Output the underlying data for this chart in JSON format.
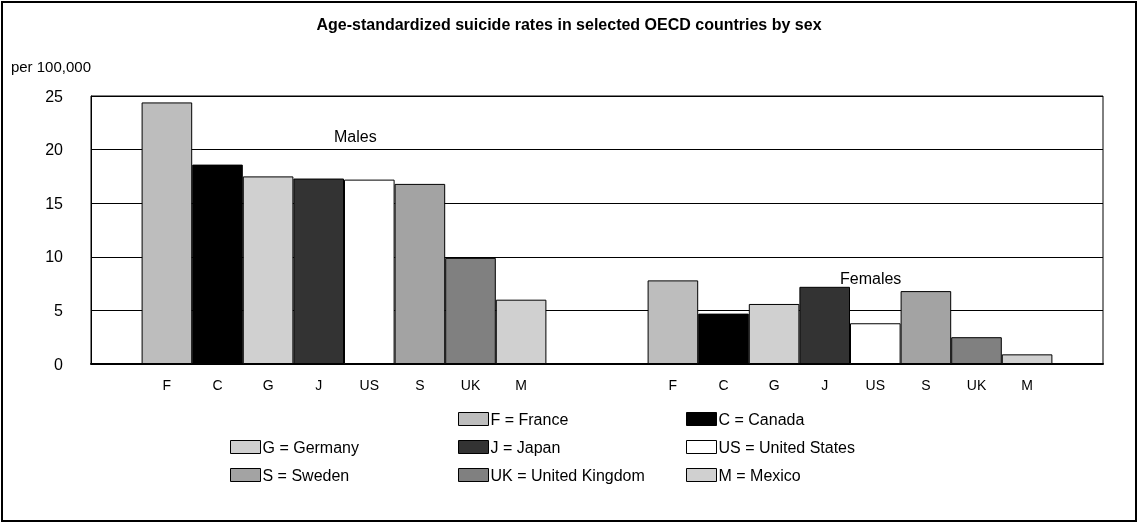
{
  "chart_data": {
    "type": "bar",
    "title": "Age-standardized suicide rates in selected OECD countries by sex",
    "ylabel": "per 100,000",
    "categories": [
      null,
      "F",
      "C",
      "G",
      "J",
      "US",
      "S",
      "UK",
      "M",
      null,
      null,
      "F",
      "C",
      "G",
      "J",
      "US",
      "S",
      "UK",
      "M",
      null
    ],
    "series": [
      {
        "name": "F = France",
        "color": "#bdbdbd",
        "values": [
          null,
          24.4,
          null,
          null,
          null,
          null,
          null,
          null,
          null,
          null,
          null,
          7.8,
          null,
          null,
          null,
          null,
          null,
          null,
          null,
          null
        ]
      },
      {
        "name": "C = Canada",
        "color": "#000000",
        "values": [
          null,
          null,
          18.6,
          null,
          null,
          null,
          null,
          null,
          null,
          null,
          null,
          null,
          4.7,
          null,
          null,
          null,
          null,
          null,
          null,
          null
        ]
      },
      {
        "name": "G = Germany",
        "color": "#d0d0d0",
        "values": [
          null,
          null,
          null,
          17.5,
          null,
          null,
          null,
          null,
          null,
          null,
          null,
          null,
          null,
          5.6,
          null,
          null,
          null,
          null,
          null,
          null
        ]
      },
      {
        "name": "J = Japan",
        "color": "#333333",
        "values": [
          null,
          null,
          null,
          null,
          17.3,
          null,
          null,
          null,
          null,
          null,
          null,
          null,
          null,
          null,
          7.2,
          null,
          null,
          null,
          null,
          null
        ]
      },
      {
        "name": "US = United States",
        "color": "#ffffff",
        "values": [
          null,
          null,
          null,
          null,
          null,
          17.2,
          null,
          null,
          null,
          null,
          null,
          null,
          null,
          null,
          null,
          3.8,
          null,
          null,
          null,
          null
        ]
      },
      {
        "name": "S = Sweden",
        "color": "#a3a3a3",
        "values": [
          null,
          null,
          null,
          null,
          null,
          null,
          16.8,
          null,
          null,
          null,
          null,
          null,
          null,
          null,
          null,
          null,
          6.8,
          null,
          null,
          null
        ]
      },
      {
        "name": "UK = United Kingdom",
        "color": "#808080",
        "values": [
          null,
          null,
          null,
          null,
          null,
          null,
          null,
          9.9,
          null,
          null,
          null,
          null,
          null,
          null,
          null,
          null,
          null,
          2.5,
          null,
          null
        ]
      },
      {
        "name": "M = Mexico",
        "color": "#d0d0d0",
        "values": [
          null,
          null,
          null,
          null,
          null,
          null,
          null,
          null,
          6.0,
          null,
          null,
          null,
          null,
          null,
          null,
          null,
          null,
          null,
          0.9,
          null
        ]
      }
    ],
    "annotations": [
      "Males",
      "Females"
    ],
    "ylim": [
      0,
      25
    ],
    "yticks": [
      0,
      5,
      10,
      15,
      20,
      25
    ],
    "grid": "y",
    "legend": "bottom"
  }
}
